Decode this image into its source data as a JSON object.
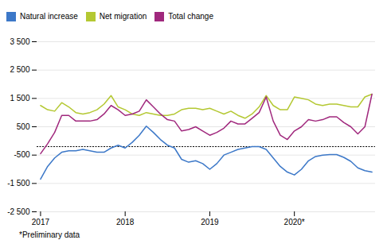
{
  "chart_data": {
    "type": "line",
    "annotations": [
      "*Preliminary data"
    ],
    "categories": [
      "2017",
      null,
      null,
      null,
      null,
      null,
      null,
      null,
      null,
      null,
      null,
      null,
      "2018",
      null,
      null,
      null,
      null,
      null,
      null,
      null,
      null,
      null,
      null,
      null,
      "2019",
      null,
      null,
      null,
      null,
      null,
      null,
      null,
      null,
      null,
      null,
      null,
      "2020*",
      null,
      null,
      null,
      null,
      null,
      null,
      null,
      null,
      null,
      null,
      null
    ],
    "series": [
      {
        "name": "Natural increase",
        "color": "#3c78c8",
        "values": [
          -1350,
          -900,
          -600,
          -400,
          -350,
          -350,
          -300,
          -350,
          -400,
          -400,
          -250,
          -150,
          -250,
          -50,
          200,
          520,
          300,
          50,
          -150,
          -250,
          -650,
          -750,
          -700,
          -800,
          -1000,
          -800,
          -500,
          -400,
          -300,
          -250,
          -200,
          -200,
          -300,
          -600,
          -900,
          -1100,
          -1200,
          -1000,
          -700,
          -550,
          -500,
          -480,
          -480,
          -580,
          -720,
          -950,
          -1050,
          -1100
        ]
      },
      {
        "name": "Net migration",
        "color": "#b4c832",
        "values": [
          1250,
          1100,
          1050,
          1350,
          1200,
          1000,
          950,
          1000,
          1100,
          1300,
          1600,
          1200,
          1100,
          950,
          900,
          1000,
          950,
          900,
          900,
          950,
          1100,
          1150,
          1150,
          1100,
          1150,
          1050,
          950,
          1050,
          900,
          800,
          950,
          1200,
          1600,
          1250,
          1100,
          1100,
          1550,
          1500,
          1450,
          1300,
          1250,
          1300,
          1300,
          1250,
          1200,
          1200,
          1550,
          1650
        ]
      },
      {
        "name": "Total change",
        "color": "#a0287d",
        "values": [
          -450,
          -100,
          300,
          900,
          900,
          700,
          700,
          700,
          750,
          950,
          1250,
          1100,
          900,
          950,
          1050,
          1450,
          1200,
          950,
          750,
          700,
          350,
          400,
          500,
          350,
          200,
          300,
          450,
          700,
          600,
          600,
          800,
          1000,
          1550,
          700,
          200,
          50,
          350,
          500,
          750,
          700,
          750,
          850,
          850,
          650,
          500,
          250,
          500,
          1650
        ]
      }
    ],
    "hline": -200,
    "ylim": [
      -2500,
      3500
    ],
    "yticks": [
      {
        "value": -2500,
        "label": "-2 500"
      },
      {
        "value": -1500,
        "label": "-1 500"
      },
      -500,
      500,
      {
        "value": 1500,
        "label": "1 500"
      },
      {
        "value": 2500,
        "label": "2 500"
      },
      {
        "value": 3500,
        "label": "3 500"
      }
    ],
    "grid": true,
    "legend": "upper left"
  }
}
